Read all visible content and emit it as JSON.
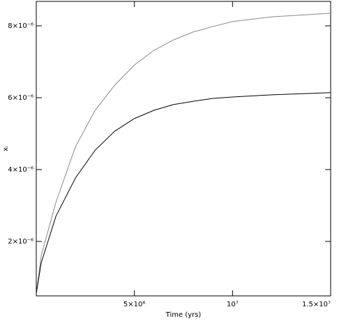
{
  "chart_data": {
    "type": "line",
    "xlabel": "Time (yrs)",
    "ylabel": "xᵢ",
    "x": [
      0,
      250000,
      1000000,
      2000000,
      3000000,
      4000000,
      5000000,
      6000000,
      7000000,
      8000000,
      9000000,
      10000000,
      12000000,
      15000000
    ],
    "series": [
      {
        "color": "#888888",
        "values": [
          5.5e-07,
          1.6e-06,
          3.09e-06,
          4.64e-06,
          5.65e-06,
          6.35e-06,
          6.91e-06,
          7.32e-06,
          7.61e-06,
          7.83e-06,
          7.98e-06,
          8.12e-06,
          8.25e-06,
          8.35e-06
        ]
      },
      {
        "color": "#000000",
        "values": [
          5.5e-07,
          1.4e-06,
          2.7e-06,
          3.77e-06,
          4.54e-06,
          5.07e-06,
          5.42e-06,
          5.65e-06,
          5.81e-06,
          5.9e-06,
          5.98e-06,
          6.02e-06,
          6.08e-06,
          6.14e-06
        ]
      }
    ],
    "xlim": [
      0,
      15000000
    ],
    "xticks": [
      {
        "value": 5000000,
        "label": "5×10⁶"
      },
      {
        "value": 10000000,
        "label": "10⁷"
      },
      {
        "value": 15000000,
        "label": "1.5×10⁷"
      }
    ],
    "ylim": [
      4.85e-07,
      8.68e-06
    ],
    "yticks": [
      {
        "value": 2e-06,
        "label": "2×10⁻⁶"
      },
      {
        "value": 4e-06,
        "label": "4×10⁻⁶"
      },
      {
        "value": 6e-06,
        "label": "6×10⁻⁶"
      },
      {
        "value": 8e-06,
        "label": "8×10⁻⁶"
      }
    ]
  }
}
